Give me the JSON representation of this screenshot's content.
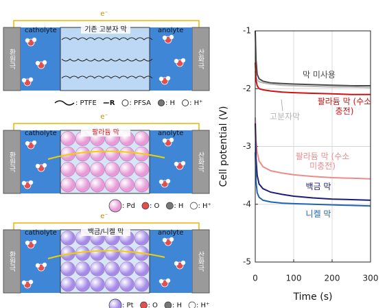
{
  "diagram": {
    "panels": [
      {
        "electron": "e⁻",
        "title": "기존 고분자 막",
        "catholyte": "catholyte",
        "anolyte": "anolyte",
        "cathode": "환원극",
        "anode": "산화극",
        "legend": [
          ": PTFE",
          "R",
          ": PFSA",
          ": H",
          ": H⁺"
        ]
      },
      {
        "electron": "e⁻",
        "title": "팔라듐 막",
        "catholyte": "catholyte",
        "anolyte": "anolyte",
        "cathode": "환원극",
        "anode": "산화극",
        "legend": [
          ": Pd",
          ": O",
          ": H",
          ": H⁺"
        ]
      },
      {
        "electron": "e⁻",
        "title": "백금/니켈 막",
        "catholyte": "catholyte",
        "anolyte": "anolyte",
        "cathode": "환원극",
        "anode": "산화극",
        "legend": [
          ": Pt",
          ": O",
          ": H",
          ": H⁺"
        ]
      }
    ]
  },
  "chart_data": {
    "type": "line",
    "xlabel": "Time (s)",
    "ylabel": "Cell potential (V)",
    "x": [
      0,
      2,
      5,
      10,
      20,
      40,
      70,
      100,
      150,
      200,
      250,
      300
    ],
    "xlim": [
      0,
      300
    ],
    "xticks": [
      0,
      100,
      200,
      300
    ],
    "ylim": [
      -5,
      -1
    ],
    "yticks": [
      -1,
      -2,
      -3,
      -4,
      -5
    ],
    "grid": true,
    "series": [
      {
        "name": "막 미사용",
        "color": "#4a4a4a",
        "values": [
          -1.0,
          -1.5,
          -1.75,
          -1.83,
          -1.87,
          -1.9,
          -1.91,
          -1.92,
          -1.93,
          -1.94,
          -1.95,
          -1.95
        ]
      },
      {
        "name": "고분자막",
        "color": "#b5b5b5",
        "values": [
          -1.7,
          -1.8,
          -1.85,
          -1.88,
          -1.9,
          -1.92,
          -1.94,
          -1.95,
          -1.96,
          -1.97,
          -1.97,
          -1.98
        ]
      },
      {
        "name": "팔라듐 막 (수소 충전)",
        "color": "#d01010",
        "values": [
          -1.55,
          -1.85,
          -1.95,
          -2.0,
          -2.02,
          -2.04,
          -2.06,
          -2.07,
          -2.08,
          -2.09,
          -2.1,
          -2.1
        ]
      },
      {
        "name": "팔라듐 막 (수소 미충전)",
        "color": "#ee8a8a",
        "values": [
          -2.5,
          -2.9,
          -3.1,
          -3.25,
          -3.35,
          -3.42,
          -3.46,
          -3.49,
          -3.52,
          -3.54,
          -3.55,
          -3.56
        ]
      },
      {
        "name": "백금 막",
        "color": "#1c1c78",
        "values": [
          -2.6,
          -3.2,
          -3.5,
          -3.65,
          -3.73,
          -3.79,
          -3.83,
          -3.86,
          -3.89,
          -3.91,
          -3.92,
          -3.93
        ]
      },
      {
        "name": "니켈 막",
        "color": "#1f63b0",
        "values": [
          -3.1,
          -3.6,
          -3.8,
          -3.88,
          -3.93,
          -3.96,
          -3.98,
          -3.99,
          -4.0,
          -4.01,
          -4.02,
          -4.03
        ]
      }
    ]
  }
}
